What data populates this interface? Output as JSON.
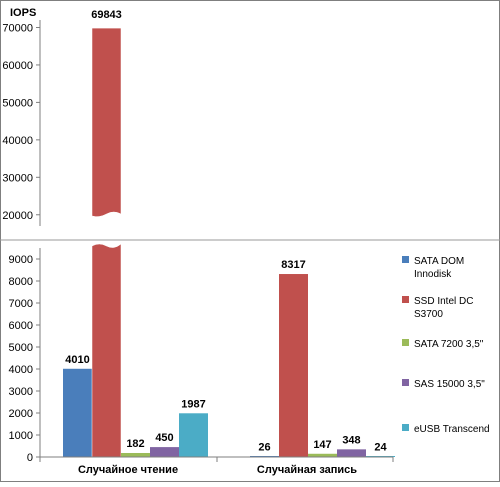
{
  "chart_data": {
    "type": "bar",
    "ylabel": "IOPS",
    "categories": [
      "Случайное чтение",
      "Случайная запись"
    ],
    "series": [
      {
        "name": "SATA DOM Innodisk",
        "values": [
          4010,
          26
        ],
        "color": "#4a7ebb"
      },
      {
        "name": "SSD Intel DC S3700",
        "values": [
          69843,
          8317
        ],
        "color": "#c0504d"
      },
      {
        "name": "SATA 7200 3,5\"",
        "values": [
          182,
          147
        ],
        "color": "#9bbb59"
      },
      {
        "name": "SAS 15000 3,5\"",
        "values": [
          450,
          348
        ],
        "color": "#8064a2"
      },
      {
        "name": "eUSB Transcend",
        "values": [
          1987,
          24
        ],
        "color": "#4bacc6"
      }
    ],
    "y_axis_broken": true,
    "lower_range": [
      0,
      9500
    ],
    "lower_ticks": [
      "0",
      "1000",
      "2000",
      "3000",
      "4000",
      "5000",
      "6000",
      "7000",
      "8000",
      "9000"
    ],
    "upper_range": [
      17000,
      72000
    ],
    "upper_ticks": [
      "20000",
      "30000",
      "40000",
      "50000",
      "60000",
      "70000"
    ],
    "data_labels": [
      [
        "4010",
        "69843",
        "182",
        "450",
        "1987"
      ],
      [
        "26",
        "8317",
        "147",
        "348",
        "24"
      ]
    ],
    "legend_labels": [
      [
        "SATA DOM",
        "Innodisk"
      ],
      [
        "SSD Intel DC",
        "S3700"
      ],
      [
        "SATA 7200 3,5\""
      ],
      [
        "SAS 15000 3,5\""
      ],
      [
        "eUSB Transcend"
      ]
    ],
    "legend_position": "right",
    "grid": false
  }
}
